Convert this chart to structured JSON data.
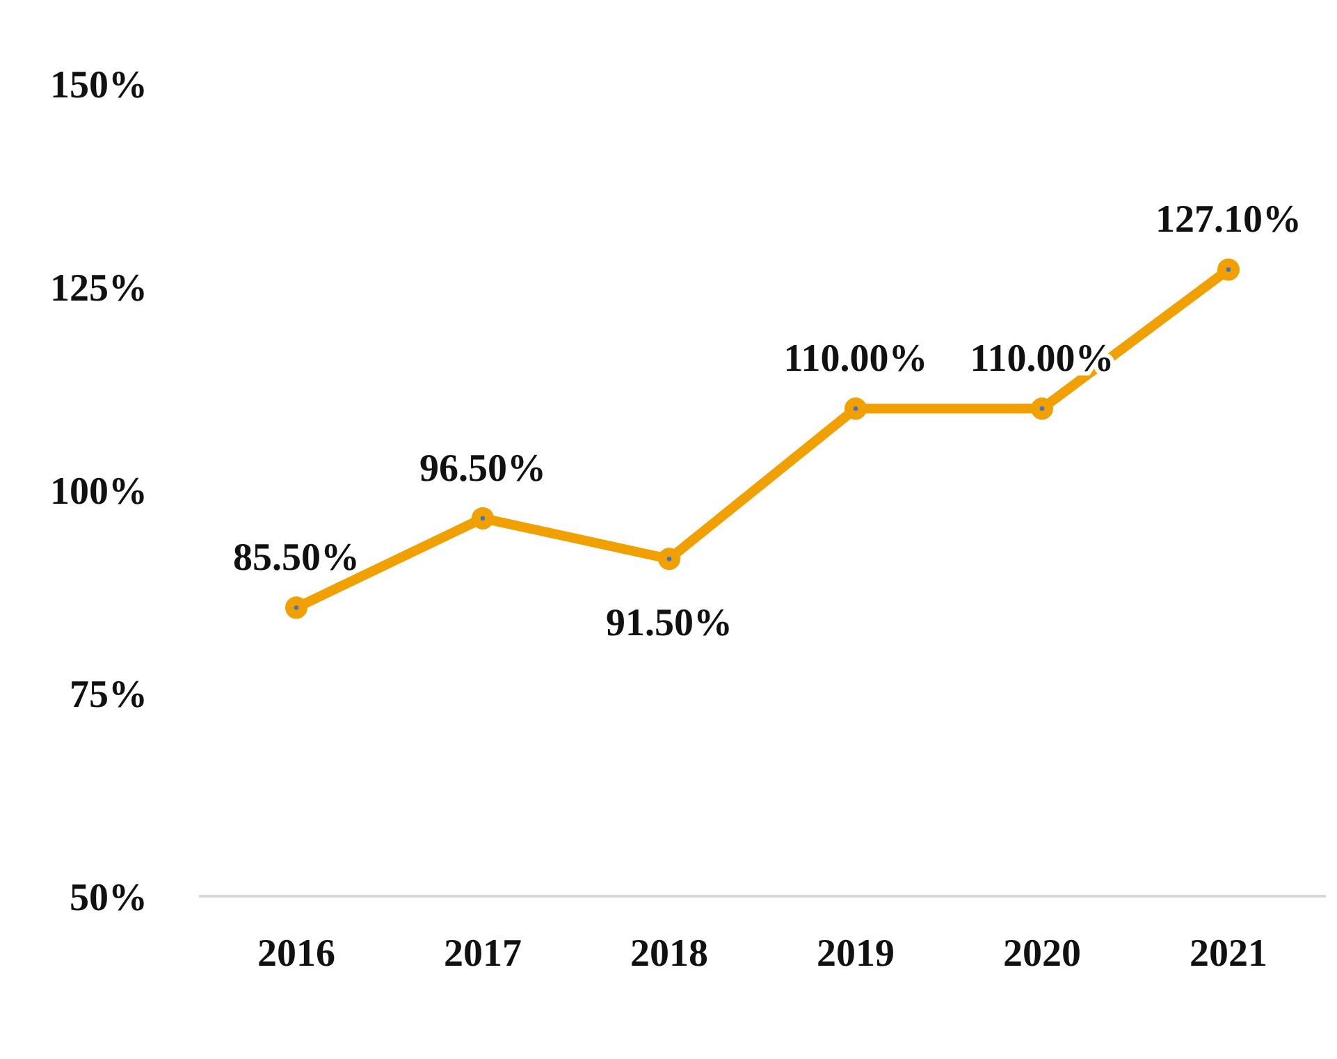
{
  "chart_data": {
    "type": "line",
    "categories": [
      "2016",
      "2017",
      "2018",
      "2019",
      "2020",
      "2021"
    ],
    "series": [
      {
        "color": "#f0a000",
        "values": [
          85.5,
          96.5,
          91.5,
          110,
          110,
          127.1
        ],
        "value_labels": [
          "85.50%",
          "96.50%",
          "91.50%",
          "110.00%",
          "110.00%",
          "127.10%"
        ]
      }
    ],
    "ylim": [
      50,
      150
    ],
    "yticks": [
      {
        "value": 50,
        "label": "50%"
      },
      {
        "value": 75,
        "label": "75%"
      },
      {
        "value": 100,
        "label": "100%"
      },
      {
        "value": 125,
        "label": "125%"
      },
      {
        "value": 150,
        "label": "150%"
      }
    ],
    "marker": "circle",
    "line_style": "solid"
  }
}
